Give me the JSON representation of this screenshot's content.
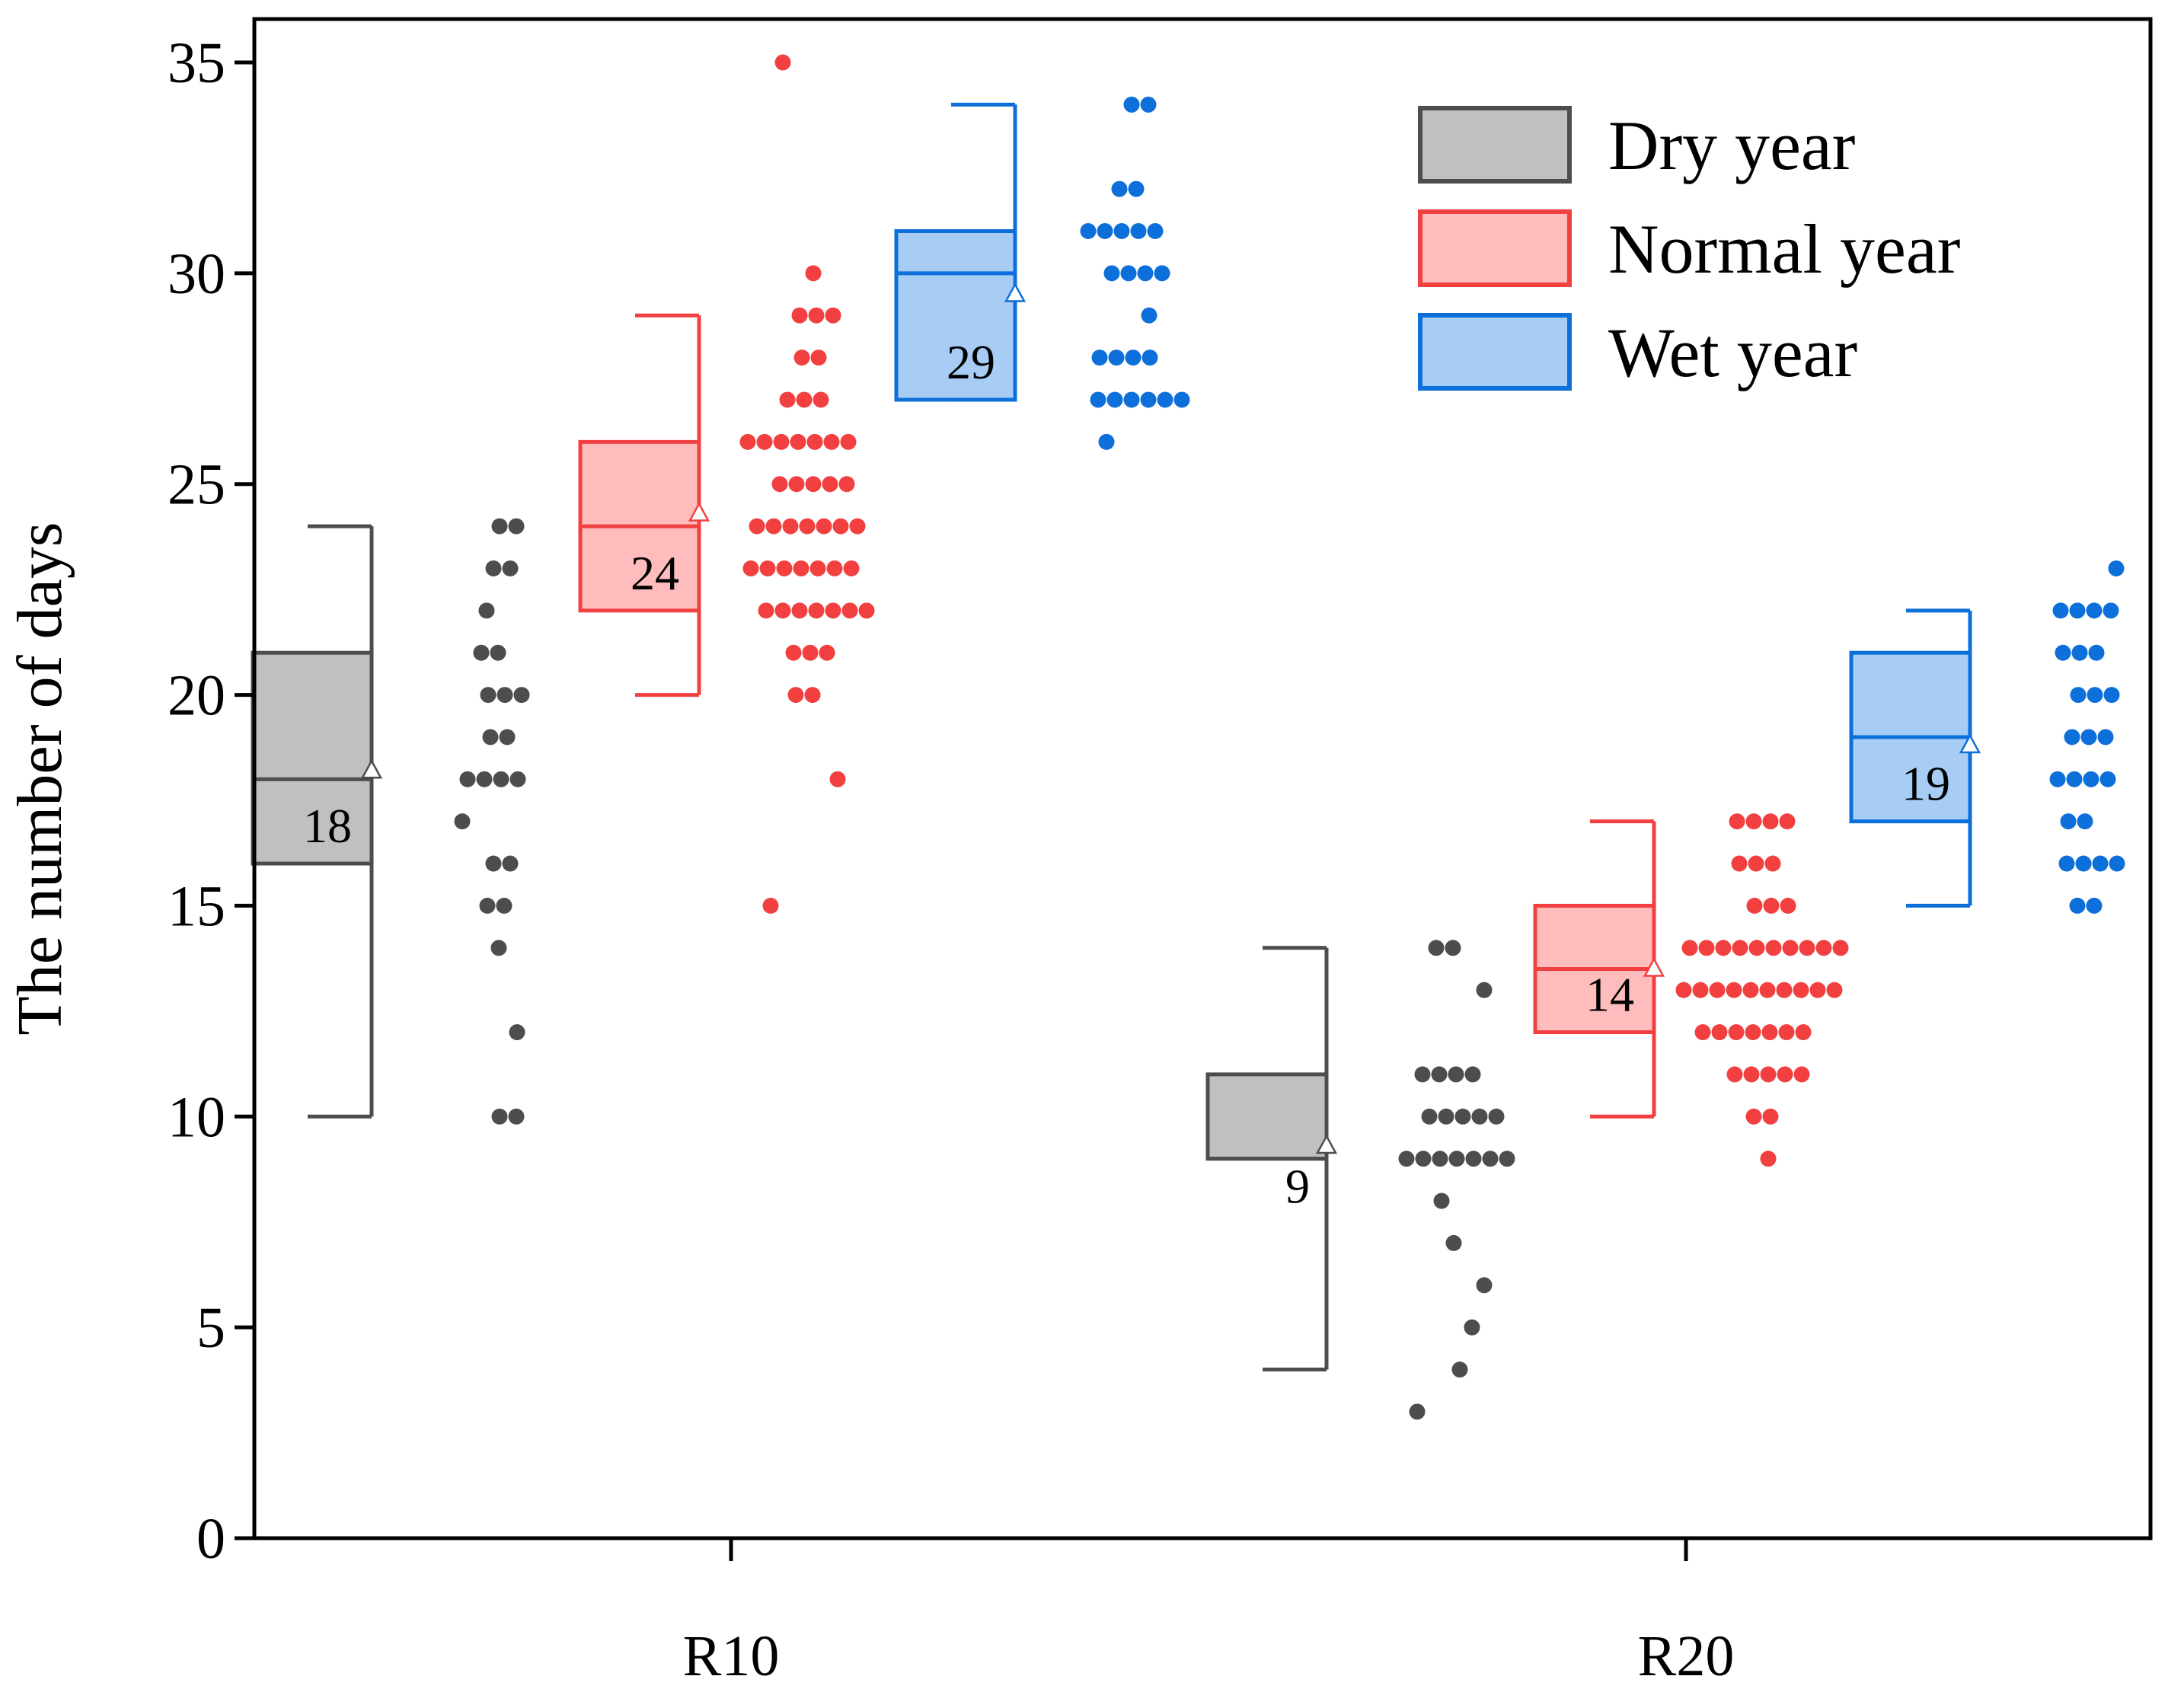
{
  "chart_data": {
    "type": "box",
    "title": "",
    "xlabel": "",
    "ylabel": "The number of days",
    "ylim": [
      0,
      36
    ],
    "yticks": [
      0,
      5,
      10,
      15,
      20,
      25,
      30,
      35
    ],
    "categories": [
      "R10",
      "R20"
    ],
    "legend": {
      "placement": "top-right",
      "entries": [
        "Dry year",
        "Normal year",
        "Wet year"
      ]
    },
    "series": [
      {
        "name": "Dry year",
        "color": "#4d4d4d",
        "fill": "#c0c0c0",
        "boxes": [
          {
            "category": "R10",
            "whisker_low": 10,
            "q1": 16,
            "median": 18,
            "q3": 21,
            "whisker_high": 24,
            "mean": 18.2,
            "label": "18",
            "points": [
              24,
              24,
              23,
              23,
              22,
              21,
              21,
              20,
              20,
              20,
              19,
              19,
              18,
              18,
              18,
              18,
              17,
              16,
              16,
              15,
              15,
              14,
              12,
              10,
              10
            ]
          },
          {
            "category": "R20",
            "whisker_low": 4,
            "q1": 9,
            "median": 9,
            "q3": 11,
            "whisker_high": 14,
            "mean": 9.3,
            "label": "9",
            "points": [
              14,
              14,
              13,
              11,
              11,
              11,
              11,
              10,
              10,
              10,
              10,
              10,
              9,
              9,
              9,
              9,
              9,
              9,
              9,
              8,
              7,
              6,
              5,
              4,
              3
            ]
          }
        ]
      },
      {
        "name": "Normal year",
        "color": "#f24040",
        "fill": "#ffbcbc",
        "boxes": [
          {
            "category": "R10",
            "whisker_low": 20,
            "q1": 22,
            "median": 24,
            "q3": 26,
            "whisker_high": 29,
            "mean": 24.3,
            "label": "24",
            "points": [
              35,
              30,
              29,
              29,
              29,
              28,
              28,
              27,
              27,
              27,
              26,
              26,
              26,
              26,
              26,
              26,
              26,
              25,
              25,
              25,
              25,
              25,
              24,
              24,
              24,
              24,
              24,
              24,
              24,
              23,
              23,
              23,
              23,
              23,
              23,
              23,
              22,
              22,
              22,
              22,
              22,
              22,
              22,
              21,
              21,
              21,
              20,
              20,
              18,
              15
            ]
          },
          {
            "category": "R20",
            "whisker_low": 10,
            "q1": 12,
            "median": 13.5,
            "q3": 15,
            "whisker_high": 17,
            "mean": 13.5,
            "label": "14",
            "points": [
              17,
              17,
              17,
              17,
              16,
              16,
              16,
              15,
              15,
              15,
              14,
              14,
              14,
              14,
              14,
              14,
              14,
              14,
              14,
              14,
              13,
              13,
              13,
              13,
              13,
              13,
              13,
              13,
              13,
              13,
              12,
              12,
              12,
              12,
              12,
              12,
              12,
              11,
              11,
              11,
              11,
              11,
              10,
              10,
              9
            ]
          }
        ]
      },
      {
        "name": "Wet year",
        "color": "#0d6fd9",
        "fill": "#a7cdf5",
        "boxes": [
          {
            "category": "R10",
            "whisker_low": 27,
            "q1": 27,
            "median": 30,
            "q3": 31,
            "whisker_high": 34,
            "mean": 29.5,
            "label": "29",
            "points": [
              34,
              34,
              32,
              32,
              31,
              31,
              31,
              31,
              31,
              30,
              30,
              30,
              30,
              29,
              28,
              28,
              28,
              28,
              27,
              27,
              27,
              27,
              27,
              27,
              26
            ]
          },
          {
            "category": "R20",
            "whisker_low": 15,
            "q1": 17,
            "median": 19,
            "q3": 21,
            "whisker_high": 22,
            "mean": 18.8,
            "label": "19",
            "points": [
              23,
              22,
              22,
              22,
              22,
              21,
              21,
              21,
              20,
              20,
              20,
              19,
              19,
              19,
              18,
              18,
              18,
              18,
              17,
              17,
              16,
              16,
              16,
              16,
              15,
              15
            ]
          }
        ]
      }
    ]
  }
}
